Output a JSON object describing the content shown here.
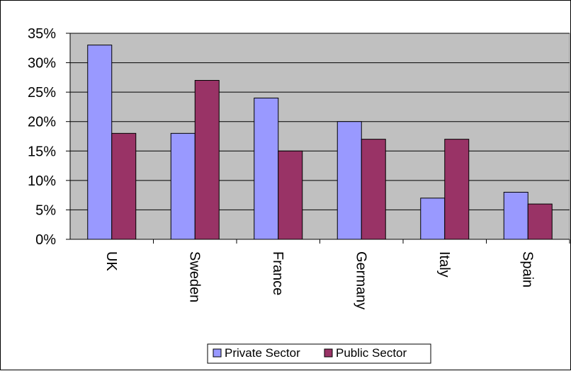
{
  "chart_data": {
    "type": "bar",
    "title": "",
    "xlabel": "",
    "ylabel": "",
    "categories": [
      "UK",
      "Sweden",
      "France",
      "Germany",
      "Italy",
      "Spain"
    ],
    "series": [
      {
        "name": "Private Sector",
        "values": [
          33,
          18,
          24,
          20,
          7,
          8
        ],
        "color": "#9999ff"
      },
      {
        "name": "Public Sector",
        "values": [
          18,
          27,
          15,
          17,
          17,
          6
        ],
        "color": "#993366"
      }
    ],
    "ylim": [
      0,
      35
    ],
    "yticks": [
      0,
      5,
      10,
      15,
      20,
      25,
      30,
      35
    ],
    "ytick_labels": [
      "0%",
      "5%",
      "10%",
      "15%",
      "20%",
      "25%",
      "30%",
      "35%"
    ],
    "plot_background": "#c0c0c0",
    "grid": "horizontal",
    "legend_position": "bottom"
  }
}
